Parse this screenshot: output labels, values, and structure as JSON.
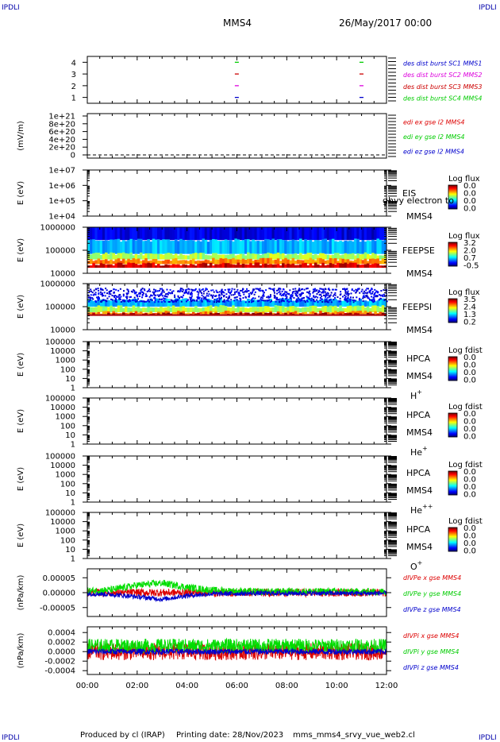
{
  "corner_marks": {
    "tl": "IPDLI",
    "tr": "IPDLI",
    "bl": "IPDLI",
    "br": "IPDLI"
  },
  "header": {
    "spacecraft": "MMS4",
    "date": "26/May/2017 00:00"
  },
  "footer": {
    "producer": "Produced by cl (IRAP)",
    "printing_date": "Printing date: 28/Nov/2023",
    "filename": "mms_mms4_srvy_vue_web2.cl"
  },
  "colors": {
    "red": "#dd0000",
    "green": "#00dd00",
    "blue": "#0000cc",
    "magenta": "#dd00dd",
    "dark_red": "#cc0000"
  },
  "chart_data": [
    {
      "type": "scatter",
      "panel": "burst_flags",
      "y_ticks": [
        "4",
        "3",
        "2",
        "1"
      ],
      "legend": [
        {
          "text": "des dist burst SC1 MMS1",
          "color": "#0000cc"
        },
        {
          "text": "des dist burst SC2 MMS2",
          "color": "#dd00dd"
        },
        {
          "text": "des dist burst SC3 MMS3",
          "color": "#cc0000"
        },
        {
          "text": "des dist burst SC4 MMS4",
          "color": "#00cc00"
        }
      ],
      "series": [
        {
          "name": "des dist burst SC1 MMS1",
          "y": 1,
          "x": [
            "05:55",
            "10:55"
          ],
          "color": "#0000cc"
        },
        {
          "name": "des dist burst SC2 MMS2",
          "y": 2,
          "x": [
            "05:55",
            "10:55"
          ],
          "color": "#dd00dd"
        },
        {
          "name": "des dist burst SC3 MMS3",
          "y": 3,
          "x": [
            "05:55",
            "10:55"
          ],
          "color": "#cc0000"
        },
        {
          "name": "des dist burst SC4 MMS4",
          "y": 4,
          "x": [
            "05:55",
            "10:55"
          ],
          "color": "#00cc00"
        }
      ]
    },
    {
      "type": "line",
      "panel": "edi",
      "ylabel": "(mV/m)",
      "y_ticks": [
        "1e+21",
        "8e+20",
        "6e+20",
        "4e+20",
        "2e+20",
        "0"
      ],
      "legend": [
        {
          "text": "edi ex gse l2 MMS4",
          "color": "#dd0000"
        },
        {
          "text": "edi ey gse l2 MMS4",
          "color": "#00cc00"
        },
        {
          "text": "edi ez gse l2 MMS4",
          "color": "#0000cc"
        }
      ],
      "series": [
        {
          "name": "zero line",
          "y": 0,
          "style": "dashed"
        }
      ]
    },
    {
      "type": "heatmap",
      "panel": "eis",
      "ylabel": "E (eV)",
      "y_ticks": [
        "1e+07",
        "1e+06",
        "1e+05",
        "1e+04"
      ],
      "labels": [
        "EIS",
        "MMS4"
      ],
      "overlay_text": "ghvy electron to",
      "colorbar": {
        "title": "Log flux",
        "ticks": [
          "0.0",
          "0.0",
          "0.0",
          "0.0"
        ]
      }
    },
    {
      "type": "heatmap",
      "panel": "feepse",
      "ylabel": "E (eV)",
      "y_ticks": [
        "1000000",
        "100000",
        "10000"
      ],
      "labels": [
        "FEEPSE",
        "MMS4"
      ],
      "colorbar": {
        "title": "Log flux",
        "ticks": [
          "3.2",
          "2.0",
          "0.7",
          "-0.5"
        ]
      },
      "bands": [
        {
          "from_frac": 0.0,
          "to_frac": 0.28,
          "level": 0.1
        },
        {
          "from_frac": 0.28,
          "to_frac": 0.58,
          "level": 0.3
        },
        {
          "from_frac": 0.58,
          "to_frac": 0.7,
          "level": 0.55
        },
        {
          "from_frac": 0.7,
          "to_frac": 0.8,
          "level": 0.75
        },
        {
          "from_frac": 0.8,
          "to_frac": 0.88,
          "level": 0.92
        }
      ]
    },
    {
      "type": "heatmap",
      "panel": "feepsi",
      "ylabel": "E (eV)",
      "y_ticks": [
        "1000000",
        "100000",
        "10000"
      ],
      "labels": [
        "FEEPSI",
        "MMS4"
      ],
      "colorbar": {
        "title": "Log flux",
        "ticks": [
          "3.5",
          "2.4",
          "1.3",
          "0.2"
        ]
      },
      "bands": [
        {
          "from_frac": 0.35,
          "to_frac": 0.5,
          "level": 0.3
        },
        {
          "from_frac": 0.5,
          "to_frac": 0.62,
          "level": 0.55
        },
        {
          "from_frac": 0.62,
          "to_frac": 0.66,
          "level": 0.75
        },
        {
          "from_frac": 0.66,
          "to_frac": 0.7,
          "level": 0.98
        }
      ]
    },
    {
      "type": "heatmap",
      "panel": "hpca_h",
      "ylabel": "E (eV)",
      "y_ticks": [
        "100000",
        "10000",
        "1000",
        "100",
        "10",
        "1"
      ],
      "labels": [
        "HPCA",
        "MMS4",
        "H+"
      ],
      "colorbar": {
        "title": "Log fdist",
        "ticks": [
          "0.0",
          "0.0",
          "0.0",
          "0.0"
        ]
      }
    },
    {
      "type": "heatmap",
      "panel": "hpca_he",
      "ylabel": "E (eV)",
      "y_ticks": [
        "100000",
        "10000",
        "1000",
        "100",
        "10",
        "1"
      ],
      "labels": [
        "HPCA",
        "MMS4",
        "He+"
      ],
      "colorbar": {
        "title": "Log fdist",
        "ticks": [
          "0.0",
          "0.0",
          "0.0",
          "0.0"
        ]
      }
    },
    {
      "type": "heatmap",
      "panel": "hpca_hepp",
      "ylabel": "E (eV)",
      "y_ticks": [
        "100000",
        "10000",
        "1000",
        "100",
        "10",
        "1"
      ],
      "labels": [
        "HPCA",
        "MMS4",
        "He++"
      ],
      "colorbar": {
        "title": "Log fdist",
        "ticks": [
          "0.0",
          "0.0",
          "0.0",
          "0.0"
        ]
      }
    },
    {
      "type": "heatmap",
      "panel": "hpca_o",
      "ylabel": "E (eV)",
      "y_ticks": [
        "100000",
        "10000",
        "1000",
        "100",
        "10",
        "1"
      ],
      "labels": [
        "HPCA",
        "MMS4",
        "O+"
      ],
      "colorbar": {
        "title": "Log fdist",
        "ticks": [
          "0.0",
          "0.0",
          "0.0",
          "0.0"
        ]
      }
    },
    {
      "type": "line",
      "panel": "dvpe",
      "ylabel": "(nPa/km)",
      "y_ticks": [
        "0.00005",
        "0.00000",
        "-0.00005"
      ],
      "ylim": [
        -8e-05,
        8e-05
      ],
      "legend": [
        {
          "text": "dIVPe x gse MMS4",
          "color": "#dd0000"
        },
        {
          "text": "dIVPe y gse MMS4",
          "color": "#00cc00"
        },
        {
          "text": "dIVPe z gse MMS4",
          "color": "#0000cc"
        }
      ],
      "series": [
        {
          "name": "dIVPe x gse MMS4",
          "color": "#dd0000",
          "mean_hourly": [
            0,
            0,
            0,
            0,
            0,
            0,
            0,
            0,
            0,
            0,
            0,
            0,
            0
          ],
          "noise": 1.3e-05
        },
        {
          "name": "dIVPe y gse MMS4",
          "color": "#00dd00",
          "mean_hourly": [
            5e-06,
            1e-05,
            2.5e-05,
            3.2e-05,
            1.8e-05,
            8e-06,
            5e-06,
            3e-06,
            4e-06,
            4e-06,
            4e-06,
            3e-06,
            3e-06
          ],
          "noise": 1.2e-05
        },
        {
          "name": "dIVPe z gse MMS4",
          "color": "#0000cc",
          "mean_hourly": [
            -3e-06,
            -6e-06,
            -1.4e-05,
            -2.2e-05,
            -1e-05,
            -4e-06,
            -3e-06,
            -2e-06,
            -2e-06,
            -2e-06,
            -2e-06,
            -2e-06,
            -2e-06
          ],
          "noise": 8e-06
        }
      ]
    },
    {
      "type": "line",
      "panel": "dvpi",
      "ylabel": "(nPa/km)",
      "y_ticks": [
        "0.0004",
        "0.0002",
        "0.0000",
        "-0.0002",
        "-0.0004"
      ],
      "ylim": [
        -0.00048,
        0.00052
      ],
      "legend": [
        {
          "text": "dIVPi x gse MMS4",
          "color": "#dd0000"
        },
        {
          "text": "dIVPi y gse MMS4",
          "color": "#00cc00"
        },
        {
          "text": "dIVPi z gse MMS4",
          "color": "#0000cc"
        }
      ],
      "series": [
        {
          "name": "dIVPi x gse MMS4",
          "color": "#dd0000",
          "mean_hourly": [
            0,
            0,
            0,
            0,
            0,
            0,
            0,
            0,
            0,
            0,
            0,
            0,
            0
          ],
          "noise": 0.00018
        },
        {
          "name": "dIVPi y gse MMS4",
          "color": "#00dd00",
          "mean_hourly": [
            0.00012,
            0.00012,
            0.00012,
            0.00012,
            0.00012,
            0.00012,
            0.00012,
            0.00012,
            0.00012,
            0.00012,
            0.00012,
            0.00012,
            0.00012
          ],
          "noise": 0.00015
        },
        {
          "name": "dIVPi z gse MMS4",
          "color": "#0000cc",
          "mean_hourly": [
            0,
            0,
            0,
            0,
            0,
            0,
            0,
            0,
            0,
            0,
            0,
            0,
            0
          ],
          "noise": 6e-05
        }
      ]
    }
  ],
  "x_axis": {
    "ticks": [
      "00:00",
      "02:00",
      "04:00",
      "06:00",
      "08:00",
      "10:00",
      "12:00"
    ],
    "range_hours": [
      0,
      12
    ]
  }
}
